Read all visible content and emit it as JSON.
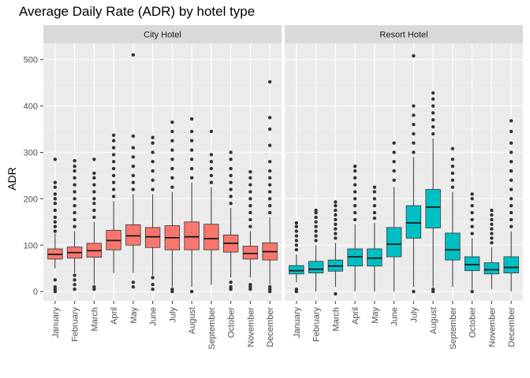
{
  "chart_data": {
    "type": "box",
    "title": "Average Daily Rate (ADR) by hotel type",
    "xlabel": "",
    "ylabel": "ADR",
    "ylim": [
      -20,
      535
    ],
    "yticks": [
      0,
      100,
      200,
      300,
      400,
      500
    ],
    "grid": true,
    "legend": "none",
    "categories": [
      "January",
      "February",
      "March",
      "April",
      "May",
      "June",
      "July",
      "August",
      "September",
      "October",
      "November",
      "December"
    ],
    "facets": [
      {
        "name": "City Hotel",
        "fill": "#F8766D",
        "boxes": [
          {
            "q1": 70,
            "median": 80,
            "q3": 92,
            "whisker_low": 50,
            "whisker_high": 125,
            "outliers": [
              0,
              5,
              10,
              25,
              130,
              140,
              150,
              160,
              175,
              190,
              200,
              210,
              225,
              235,
              285
            ]
          },
          {
            "q1": 72,
            "median": 84,
            "q3": 96,
            "whisker_low": 40,
            "whisker_high": 130,
            "outliers": [
              5,
              15,
              25,
              35,
              140,
              155,
              170,
              185,
              200,
              215,
              230,
              245,
              260,
              270,
              282
            ]
          },
          {
            "q1": 74,
            "median": 88,
            "q3": 104,
            "whisker_low": 15,
            "whisker_high": 150,
            "outliers": [
              5,
              10,
              160,
              175,
              190,
              200,
              215,
              230,
              245,
              255,
              285
            ]
          },
          {
            "q1": 90,
            "median": 110,
            "q3": 132,
            "whisker_low": 40,
            "whisker_high": 195,
            "outliers": [
              205,
              220,
              235,
              250,
              265,
              280,
              295,
              310,
              325,
              337
            ]
          },
          {
            "q1": 100,
            "median": 120,
            "q3": 144,
            "whisker_low": 40,
            "whisker_high": 210,
            "outliers": [
              10,
              20,
              220,
              235,
              250,
              270,
              290,
              310,
              335,
              510
            ]
          },
          {
            "q1": 95,
            "median": 118,
            "q3": 138,
            "whisker_low": 35,
            "whisker_high": 210,
            "outliers": [
              5,
              15,
              30,
              220,
              240,
              260,
              280,
              300,
              320,
              332
            ]
          },
          {
            "q1": 90,
            "median": 116,
            "q3": 142,
            "whisker_low": 10,
            "whisker_high": 215,
            "outliers": [
              0,
              5,
              225,
              245,
              265,
              285,
              305,
              325,
              345,
              365
            ]
          },
          {
            "q1": 90,
            "median": 118,
            "q3": 150,
            "whisker_low": 10,
            "whisker_high": 235,
            "outliers": [
              0,
              245,
              265,
              285,
              305,
              325,
              345,
              372
            ]
          },
          {
            "q1": 90,
            "median": 114,
            "q3": 145,
            "whisker_low": 15,
            "whisker_high": 225,
            "outliers": [
              235,
              250,
              265,
              280,
              295,
              345
            ]
          },
          {
            "q1": 85,
            "median": 104,
            "q3": 122,
            "whisker_low": 30,
            "whisker_high": 180,
            "outliers": [
              5,
              10,
              20,
              190,
              205,
              220,
              235,
              250,
              265,
              285,
              300
            ]
          },
          {
            "q1": 70,
            "median": 82,
            "q3": 98,
            "whisker_low": 30,
            "whisker_high": 130,
            "outliers": [
              5,
              10,
              15,
              140,
              155,
              170,
              185,
              200,
              215,
              230,
              245,
              258
            ]
          },
          {
            "q1": 68,
            "median": 86,
            "q3": 105,
            "whisker_low": 15,
            "whisker_high": 160,
            "outliers": [
              0,
              5,
              10,
              170,
              185,
              200,
              215,
              230,
              245,
              260,
              280,
              315,
              350,
              375,
              452
            ]
          }
        ]
      },
      {
        "name": "Resort Hotel",
        "fill": "#00BFC4",
        "boxes": [
          {
            "q1": 38,
            "median": 45,
            "q3": 56,
            "whisker_low": 20,
            "whisker_high": 80,
            "outliers": [
              0,
              5,
              90,
              100,
              110,
              120,
              130,
              140,
              148
            ]
          },
          {
            "q1": 40,
            "median": 48,
            "q3": 65,
            "whisker_low": 0,
            "whisker_high": 100,
            "outliers": [
              110,
              120,
              130,
              140,
              150,
              160,
              170,
              175
            ]
          },
          {
            "q1": 44,
            "median": 55,
            "q3": 68,
            "whisker_low": 10,
            "whisker_high": 105,
            "outliers": [
              -5,
              115,
              125,
              135,
              145,
              155,
              165,
              175,
              185,
              193
            ]
          },
          {
            "q1": 55,
            "median": 75,
            "q3": 92,
            "whisker_low": 0,
            "whisker_high": 145,
            "outliers": [
              155,
              170,
              185,
              200,
              215,
              230,
              245,
              260,
              270
            ]
          },
          {
            "q1": 55,
            "median": 72,
            "q3": 92,
            "whisker_low": 0,
            "whisker_high": 148,
            "outliers": [
              158,
              170,
              185,
              200,
              215,
              225
            ]
          },
          {
            "q1": 75,
            "median": 102,
            "q3": 138,
            "whisker_low": 0,
            "whisker_high": 225,
            "outliers": [
              240,
              260,
              280,
              300,
              320
            ]
          },
          {
            "q1": 115,
            "median": 148,
            "q3": 185,
            "whisker_low": 10,
            "whisker_high": 290,
            "outliers": [
              0,
              300,
              320,
              340,
              360,
              380,
              400,
              508
            ]
          },
          {
            "q1": 137,
            "median": 182,
            "q3": 220,
            "whisker_low": 10,
            "whisker_high": 330,
            "outliers": [
              0,
              5,
              340,
              355,
              370,
              385,
              400,
              415,
              428
            ]
          },
          {
            "q1": 68,
            "median": 90,
            "q3": 126,
            "whisker_low": 10,
            "whisker_high": 215,
            "outliers": [
              225,
              240,
              255,
              270,
              285,
              308
            ]
          },
          {
            "q1": 45,
            "median": 58,
            "q3": 75,
            "whisker_low": 5,
            "whisker_high": 115,
            "outliers": [
              0,
              125,
              140,
              155,
              170,
              185,
              200,
              210
            ]
          },
          {
            "q1": 38,
            "median": 47,
            "q3": 62,
            "whisker_low": 5,
            "whisker_high": 95,
            "outliers": [
              105,
              115,
              125,
              135,
              145,
              155,
              165,
              175
            ]
          },
          {
            "q1": 40,
            "median": 52,
            "q3": 75,
            "whisker_low": 0,
            "whisker_high": 130,
            "outliers": [
              140,
              155,
              170,
              185,
              200,
              220,
              240,
              260,
              280,
              300,
              320,
              345,
              368
            ]
          }
        ]
      }
    ]
  }
}
